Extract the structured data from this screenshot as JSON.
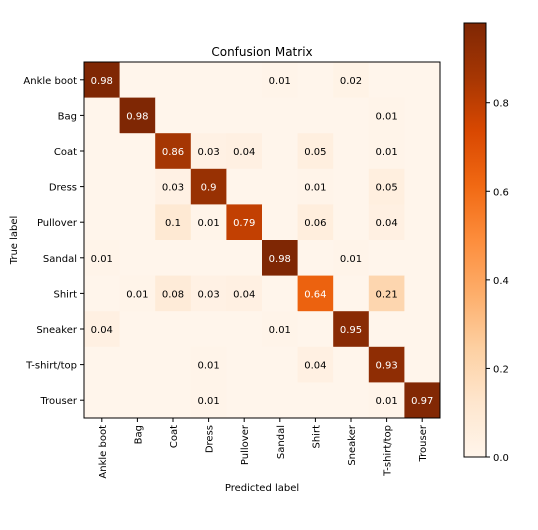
{
  "chart_data": {
    "type": "heatmap",
    "title": "Confusion Matrix",
    "xlabel": "Predicted label",
    "ylabel": "True label",
    "labels": [
      "Ankle boot",
      "Bag",
      "Coat",
      "Dress",
      "Pullover",
      "Sandal",
      "Shirt",
      "Sneaker",
      "T-shirt/top",
      "Trouser"
    ],
    "matrix": [
      [
        0.98,
        0,
        0,
        0,
        0,
        0.01,
        0,
        0.02,
        0,
        0
      ],
      [
        0,
        0.98,
        0,
        0,
        0,
        0,
        0,
        0,
        0.01,
        0
      ],
      [
        0,
        0,
        0.86,
        0.03,
        0.04,
        0,
        0.05,
        0,
        0.01,
        0
      ],
      [
        0,
        0,
        0.03,
        0.9,
        0,
        0,
        0.01,
        0,
        0.05,
        0
      ],
      [
        0,
        0,
        0.1,
        0.01,
        0.79,
        0,
        0.06,
        0,
        0.04,
        0
      ],
      [
        0.01,
        0,
        0,
        0,
        0,
        0.98,
        0,
        0.01,
        0,
        0
      ],
      [
        0,
        0.01,
        0.08,
        0.03,
        0.04,
        0,
        0.64,
        0,
        0.21,
        0
      ],
      [
        0.04,
        0,
        0,
        0,
        0,
        0.01,
        0,
        0.95,
        0,
        0
      ],
      [
        0,
        0,
        0,
        0.01,
        0,
        0,
        0.04,
        0,
        0.93,
        0
      ],
      [
        0,
        0,
        0,
        0.01,
        0,
        0,
        0,
        0,
        0.01,
        0.97
      ]
    ],
    "cell_labels": [
      [
        "0.98",
        "",
        "",
        "",
        "",
        "0.01",
        "",
        "0.02",
        "",
        ""
      ],
      [
        "",
        "0.98",
        "",
        "",
        "",
        "",
        "",
        "",
        "0.01",
        ""
      ],
      [
        "",
        "",
        "0.86",
        "0.03",
        "0.04",
        "",
        "0.05",
        "",
        "0.01",
        ""
      ],
      [
        "",
        "",
        "0.03",
        "0.9",
        "",
        "",
        "0.01",
        "",
        "0.05",
        ""
      ],
      [
        "",
        "",
        "0.1",
        "0.01",
        "0.79",
        "",
        "0.06",
        "",
        "0.04",
        ""
      ],
      [
        "0.01",
        "",
        "",
        "",
        "",
        "0.98",
        "",
        "0.01",
        "",
        ""
      ],
      [
        "",
        "0.01",
        "0.08",
        "0.03",
        "0.04",
        "",
        "0.64",
        "",
        "0.21",
        ""
      ],
      [
        "0.04",
        "",
        "",
        "",
        "",
        "0.01",
        "",
        "0.95",
        "",
        ""
      ],
      [
        "",
        "",
        "",
        "0.01",
        "",
        "",
        "0.04",
        "",
        "0.93",
        ""
      ],
      [
        "",
        "",
        "",
        "0.01",
        "",
        "",
        "",
        "",
        "0.01",
        "0.97"
      ]
    ],
    "colormap": "Oranges",
    "colormap_stops": [
      "#fff5eb",
      "#fee6ce",
      "#fdd0a2",
      "#fdae6b",
      "#fd8d3c",
      "#f16913",
      "#d94801",
      "#a63603",
      "#7f2704"
    ],
    "text_threshold": 0.5,
    "colorbar": {
      "range": [
        0,
        0.98
      ],
      "ticks": [
        0.0,
        0.2,
        0.4,
        0.6,
        0.8
      ],
      "tick_labels": [
        "0.0",
        "0.2",
        "0.4",
        "0.6",
        "0.8"
      ]
    },
    "grid": false
  }
}
